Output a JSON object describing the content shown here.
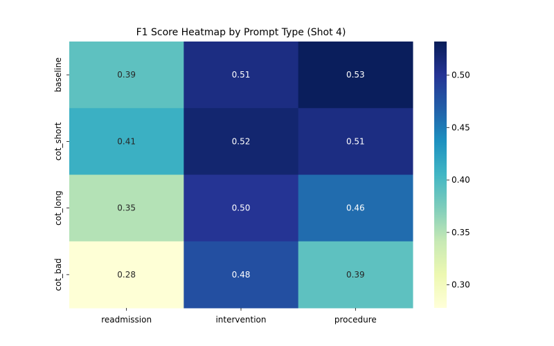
{
  "chart_data": {
    "type": "heatmap",
    "title": "F1 Score Heatmap by Prompt Type (Shot 4)",
    "xlabel": "",
    "ylabel": "",
    "x_categories": [
      "readmission",
      "intervention",
      "procedure"
    ],
    "y_categories": [
      "baseline",
      "cot_short",
      "cot_long",
      "cot_bad"
    ],
    "values": [
      [
        0.39,
        0.51,
        0.53
      ],
      [
        0.41,
        0.52,
        0.51
      ],
      [
        0.35,
        0.5,
        0.46
      ],
      [
        0.28,
        0.48,
        0.39
      ]
    ],
    "annotations": [
      [
        "0.39",
        "0.51",
        "0.53"
      ],
      [
        "0.41",
        "0.52",
        "0.51"
      ],
      [
        "0.35",
        "0.50",
        "0.46"
      ],
      [
        "0.28",
        "0.48",
        "0.39"
      ]
    ],
    "colormap": "YlGnBu",
    "vmin": 0.278,
    "vmax": 0.532,
    "colorbar_ticks": [
      0.3,
      0.35,
      0.4,
      0.45,
      0.5
    ],
    "colorbar_tick_labels": [
      "0.30",
      "0.35",
      "0.40",
      "0.45",
      "0.50"
    ],
    "grid": false,
    "legend": "colorbar-right"
  }
}
